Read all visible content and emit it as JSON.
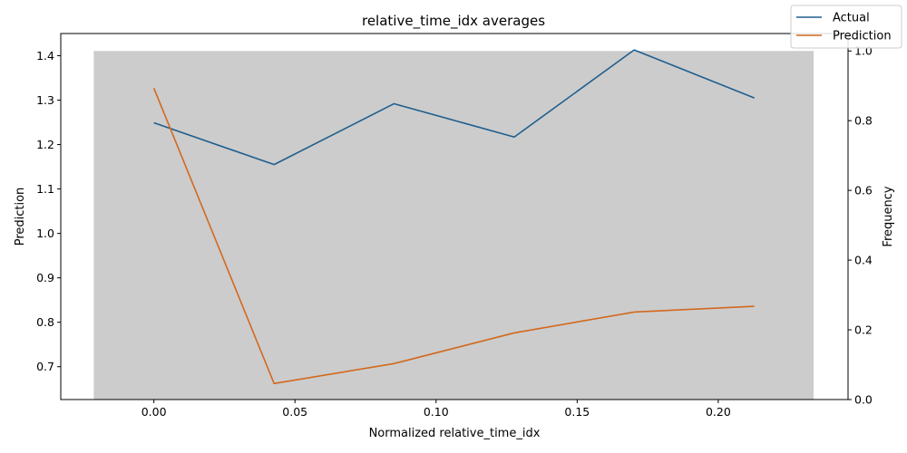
{
  "chart_data": {
    "type": "line",
    "title": "relative_time_idx averages",
    "xlabel": "Normalized relative_time_idx",
    "ylabel": "Prediction",
    "y2label": "Frequency",
    "xlim": [
      -0.033,
      0.246
    ],
    "ylim": [
      0.626,
      1.45
    ],
    "y2lim": [
      0,
      1.05
    ],
    "xticks": [
      "0.00",
      "0.05",
      "0.10",
      "0.15",
      "0.20"
    ],
    "xtick_values": [
      0.0,
      0.05,
      0.1,
      0.15,
      0.2
    ],
    "yticks": [
      "0.7",
      "0.8",
      "0.9",
      "1.0",
      "1.1",
      "1.2",
      "1.3",
      "1.4"
    ],
    "ytick_values": [
      0.7,
      0.8,
      0.9,
      1.0,
      1.1,
      1.2,
      1.3,
      1.4
    ],
    "y2ticks": [
      "0.0",
      "0.2",
      "0.4",
      "0.6",
      "0.8",
      "1.0"
    ],
    "y2tick_values": [
      0.0,
      0.2,
      0.4,
      0.6,
      0.8,
      1.0
    ],
    "histogram": {
      "x_start": -0.0213,
      "x_end": 0.2338,
      "frequency": 1.0,
      "color": "#cccccc"
    },
    "x": [
      0.0,
      0.0426,
      0.0851,
      0.1277,
      0.1702,
      0.2128
    ],
    "series": [
      {
        "name": "Actual",
        "color": "#1f5f8f",
        "values": [
          1.249,
          1.155,
          1.292,
          1.217,
          1.413,
          1.305
        ]
      },
      {
        "name": "Prediction",
        "color": "#d2691e",
        "values": [
          1.327,
          0.662,
          0.707,
          0.776,
          0.823,
          0.836
        ]
      }
    ],
    "legend": "top-right",
    "grid": false
  }
}
